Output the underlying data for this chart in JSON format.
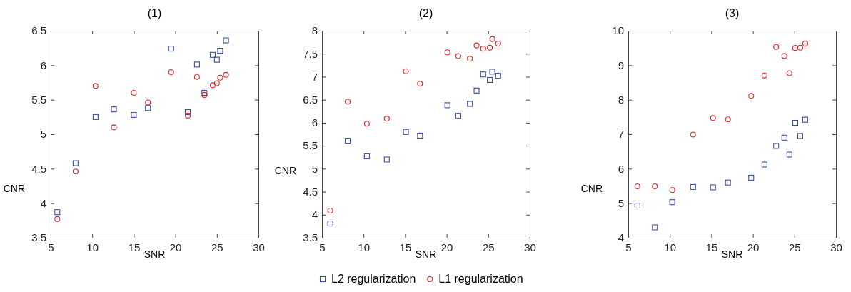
{
  "chart_data": [
    {
      "type": "scatter",
      "title": "(1)",
      "xlabel": "SNR",
      "ylabel": "CNR",
      "xlim": [
        5,
        30
      ],
      "xticks": [
        5,
        10,
        15,
        20,
        25,
        30
      ],
      "ylim": [
        3.5,
        6.5
      ],
      "yticks": [
        3.5,
        4,
        4.5,
        5,
        5.5,
        6,
        6.5
      ],
      "legend": false,
      "x": [
        5.8,
        8.0,
        10.4,
        12.6,
        15.0,
        16.7,
        19.5,
        21.5,
        22.6,
        23.5,
        24.5,
        25.0,
        25.4,
        26.1
      ],
      "series": [
        {
          "color": "#3b4fa3",
          "marker": "square",
          "values": [
            3.87,
            4.58,
            5.25,
            5.36,
            5.28,
            5.38,
            6.24,
            5.32,
            6.01,
            5.6,
            6.15,
            6.08,
            6.21,
            6.36
          ]
        },
        {
          "color": "#e2262b",
          "marker": "circle",
          "values": [
            3.77,
            4.46,
            5.7,
            5.1,
            5.6,
            5.46,
            5.9,
            5.27,
            5.83,
            5.57,
            5.71,
            5.74,
            5.82,
            5.86
          ]
        }
      ]
    },
    {
      "type": "scatter",
      "title": "(2)",
      "xlabel": "SNR",
      "ylabel": "CNR",
      "xlim": [
        5,
        30
      ],
      "xticks": [
        5,
        10,
        15,
        20,
        25,
        30
      ],
      "ylim": [
        3.5,
        8
      ],
      "yticks": [
        3.5,
        4,
        4.5,
        5,
        5.5,
        6,
        6.5,
        7,
        7.5,
        8
      ],
      "legend": "bottom",
      "x": [
        6.0,
        8.1,
        10.4,
        12.8,
        15.1,
        16.8,
        20.1,
        21.4,
        22.8,
        23.6,
        24.4,
        25.2,
        25.5,
        26.2
      ],
      "series": [
        {
          "name": "L2 regularization",
          "color": "#3b4fa3",
          "marker": "square",
          "values": [
            3.81,
            5.61,
            5.27,
            5.2,
            5.8,
            5.72,
            6.38,
            6.15,
            6.41,
            6.7,
            7.05,
            6.93,
            7.11,
            7.02
          ]
        },
        {
          "name": "L1 regularization",
          "color": "#e2262b",
          "marker": "circle",
          "values": [
            4.09,
            6.46,
            5.98,
            6.09,
            7.12,
            6.85,
            7.53,
            7.45,
            7.39,
            7.68,
            7.61,
            7.63,
            7.82,
            7.72
          ]
        }
      ]
    },
    {
      "type": "scatter",
      "title": "(3)",
      "xlabel": "SNR",
      "ylabel": "CNR",
      "xlim": [
        5,
        30
      ],
      "xticks": [
        5,
        10,
        15,
        20,
        25,
        30
      ],
      "ylim": [
        4,
        10
      ],
      "yticks": [
        4,
        5,
        6,
        7,
        8,
        9,
        10
      ],
      "legend": false,
      "x": [
        6.1,
        8.2,
        10.3,
        12.8,
        15.2,
        17.0,
        19.8,
        21.4,
        22.8,
        23.8,
        24.4,
        25.1,
        25.7,
        26.3
      ],
      "series": [
        {
          "color": "#3b4fa3",
          "marker": "square",
          "values": [
            4.93,
            4.3,
            5.03,
            5.47,
            5.46,
            5.6,
            5.74,
            6.12,
            6.66,
            6.9,
            6.41,
            7.33,
            6.95,
            7.42
          ]
        },
        {
          "color": "#e2262b",
          "marker": "circle",
          "values": [
            5.49,
            5.49,
            5.38,
            6.99,
            7.47,
            7.43,
            8.11,
            8.7,
            9.53,
            9.27,
            8.77,
            9.5,
            9.51,
            9.63
          ]
        }
      ]
    }
  ]
}
